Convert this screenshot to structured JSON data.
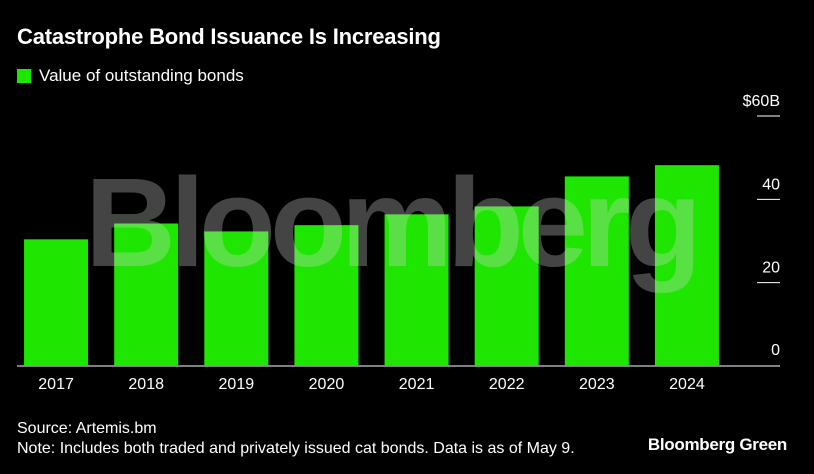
{
  "title": "Catastrophe Bond Issuance Is Increasing",
  "watermark": "Bloomberg",
  "footer": {
    "source": "Source: Artemis.bm",
    "note": "Note: Includes both traded and privately issued cat bonds. Data is as of May 9.",
    "logo": "Bloomberg Green"
  },
  "colors": {
    "bar": "#1ee600",
    "background": "#000000"
  },
  "chart_data": {
    "type": "bar",
    "title": "Catastrophe Bond Issuance Is Increasing",
    "categories": [
      "2017",
      "2018",
      "2019",
      "2020",
      "2021",
      "2022",
      "2023",
      "2024"
    ],
    "series": [
      {
        "name": "Value of outstanding bonds",
        "values": [
          30.4,
          34.2,
          32.3,
          33.8,
          36.4,
          38.3,
          45.5,
          48.2
        ]
      }
    ],
    "ylim": [
      0,
      60
    ],
    "yticks": [
      0,
      20,
      40,
      60
    ],
    "ytick_labels": [
      "0",
      "20",
      "40",
      "$60B"
    ],
    "xlabel": "",
    "ylabel": "",
    "grid": false,
    "legend_position": "top-left"
  }
}
